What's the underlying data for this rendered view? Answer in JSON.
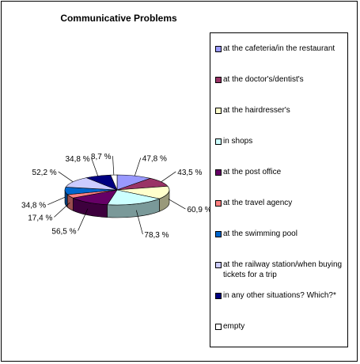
{
  "chart_data": {
    "type": "pie",
    "title": "Communicative Problems",
    "categories": [
      "at the cafeteria/in the restaurant",
      "at the doctor's/dentist's",
      "at the hairdresser's",
      "in shops",
      "at the post office",
      "at the travel agency",
      "at the swimming pool",
      "at the railway station/when buying tickets for a trip",
      "in any other situations? Which?*",
      "empty"
    ],
    "values": [
      47.8,
      43.5,
      60.9,
      78.3,
      56.5,
      17.4,
      34.8,
      52.2,
      34.8,
      8.7
    ],
    "value_labels": [
      "47,8 %",
      "43,5 %",
      "60,9 %",
      "78,3 %",
      "56,5 %",
      "17,4 %",
      "34,8 %",
      "52,2 %",
      "34,8 %",
      "8,7 %"
    ],
    "colors": [
      "#9999FF",
      "#993366",
      "#FFFFCC",
      "#CCFFFF",
      "#660066",
      "#FF8080",
      "#0066CC",
      "#CCCCFF",
      "#000080",
      "#FFFFFF"
    ],
    "style": "3d-pie",
    "legend_position": "right"
  }
}
